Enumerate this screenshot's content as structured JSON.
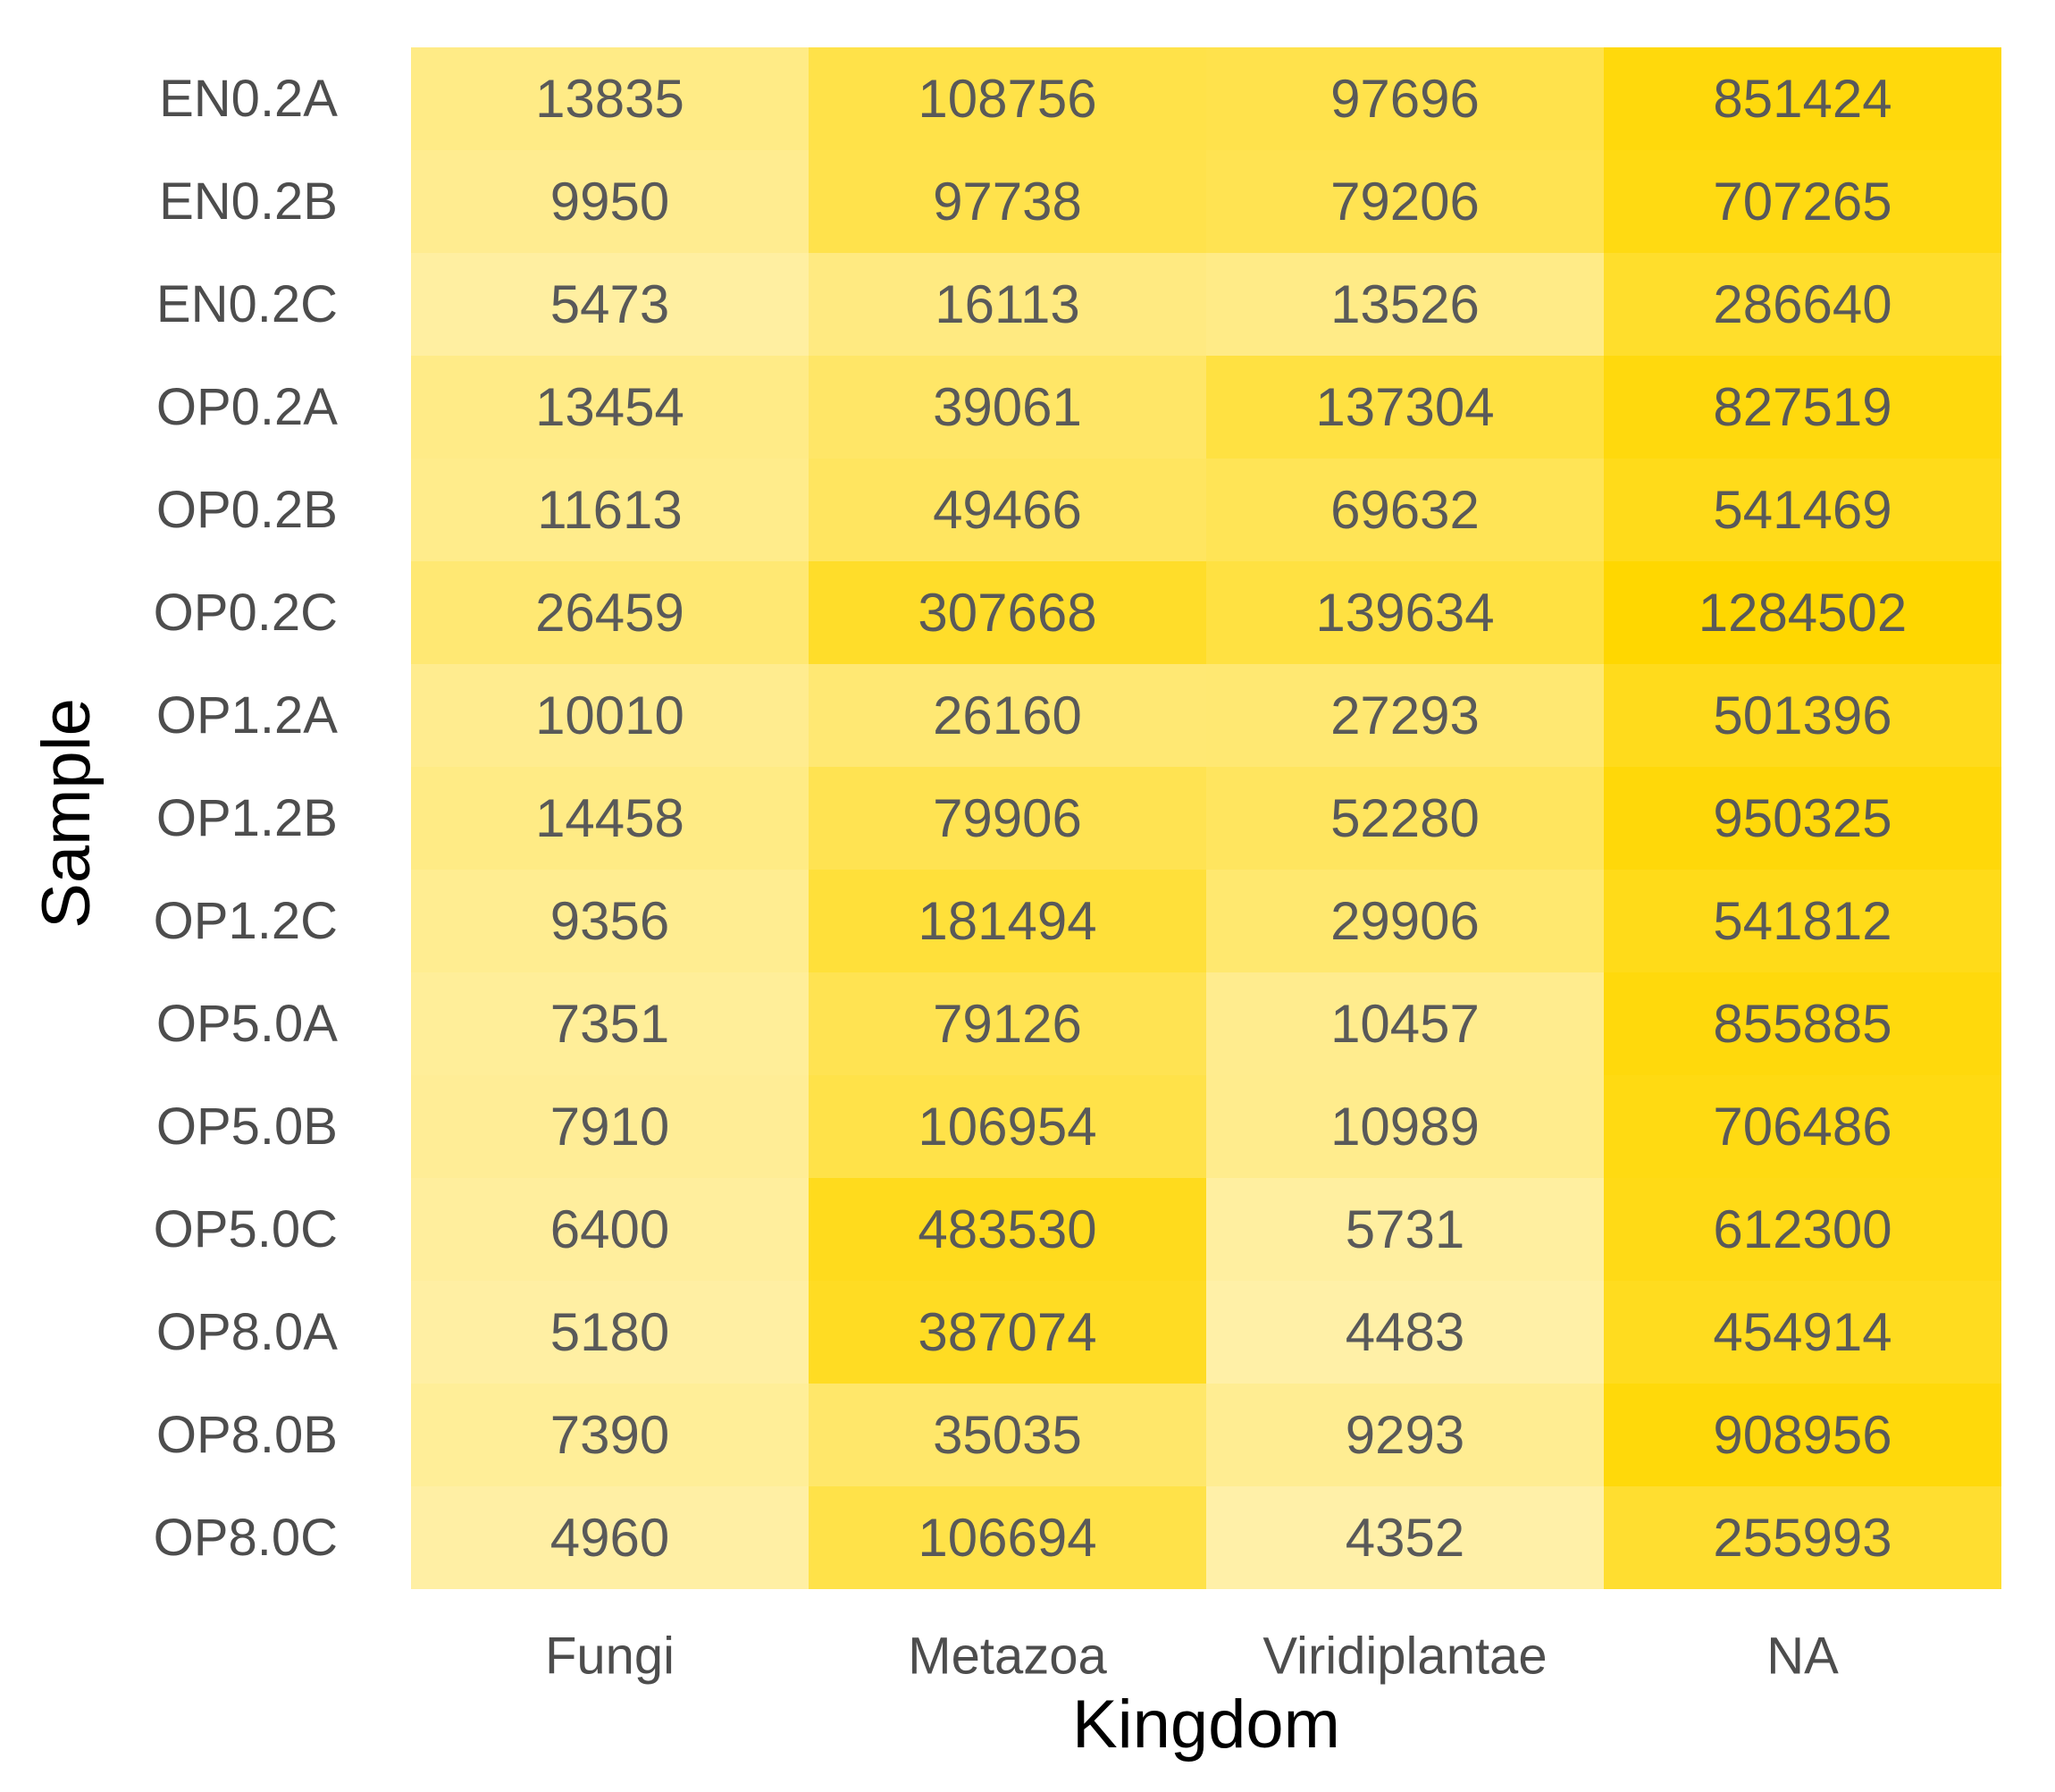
{
  "chart_data": {
    "type": "heatmap",
    "xlabel": "Kingdom",
    "ylabel": "Sample",
    "x_categories": [
      "Fungi",
      "Metazoa",
      "Viridiplantae",
      "NA"
    ],
    "y_categories": [
      "EN0.2A",
      "EN0.2B",
      "EN0.2C",
      "OP0.2A",
      "OP0.2B",
      "OP0.2C",
      "OP1.2A",
      "OP1.2B",
      "OP1.2C",
      "OP5.0A",
      "OP5.0B",
      "OP5.0C",
      "OP8.0A",
      "OP8.0B",
      "OP8.0C"
    ],
    "values": [
      [
        13835,
        108756,
        97696,
        851424
      ],
      [
        9950,
        97738,
        79206,
        707265
      ],
      [
        5473,
        16113,
        13526,
        286640
      ],
      [
        13454,
        39061,
        137304,
        827519
      ],
      [
        11613,
        49466,
        69632,
        541469
      ],
      [
        26459,
        307668,
        139634,
        1284502
      ],
      [
        10010,
        26160,
        27293,
        501396
      ],
      [
        14458,
        79906,
        52280,
        950325
      ],
      [
        9356,
        181494,
        29906,
        541812
      ],
      [
        7351,
        79126,
        10457,
        855885
      ],
      [
        7910,
        106954,
        10989,
        706486
      ],
      [
        6400,
        483530,
        5731,
        612300
      ],
      [
        5180,
        387074,
        4483,
        454914
      ],
      [
        7390,
        35035,
        9293,
        908956
      ],
      [
        4960,
        106694,
        4352,
        255993
      ]
    ],
    "color_low": "#fff0a8",
    "color_high": "#ffd700",
    "scale": "log",
    "grid": false,
    "legend": "none"
  }
}
